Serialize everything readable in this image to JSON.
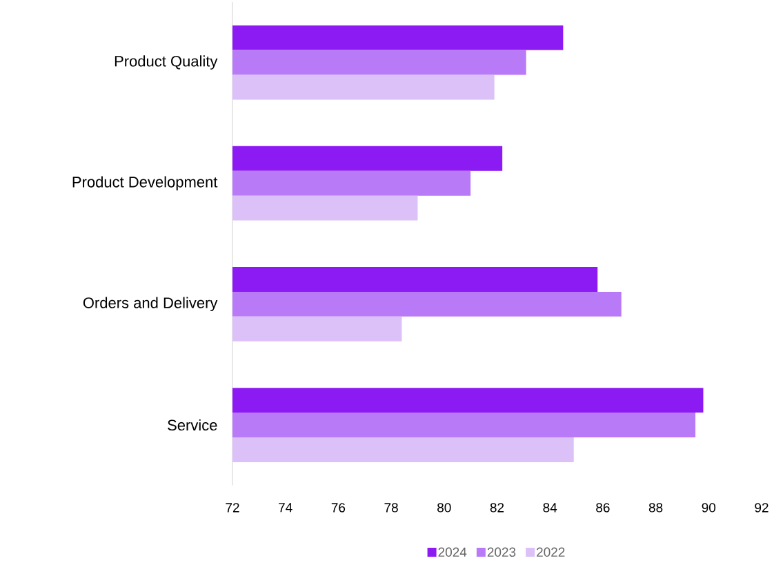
{
  "chart_data": {
    "type": "bar",
    "orientation": "horizontal",
    "categories": [
      "Product Quality",
      "Product Development",
      "Orders and Delivery",
      "Service"
    ],
    "series": [
      {
        "name": "2024",
        "color": "#8c1af2",
        "values": [
          84.5,
          82.2,
          85.8,
          89.8
        ]
      },
      {
        "name": "2023",
        "color": "#b87af7",
        "values": [
          83.1,
          81.0,
          86.7,
          89.5
        ]
      },
      {
        "name": "2022",
        "color": "#dcc0f8",
        "values": [
          81.9,
          79.0,
          78.4,
          84.9
        ]
      }
    ],
    "xlim": [
      72,
      92
    ],
    "xticks": [
      72,
      74,
      76,
      78,
      80,
      82,
      84,
      86,
      88,
      90,
      92
    ],
    "legend": "bottom"
  }
}
